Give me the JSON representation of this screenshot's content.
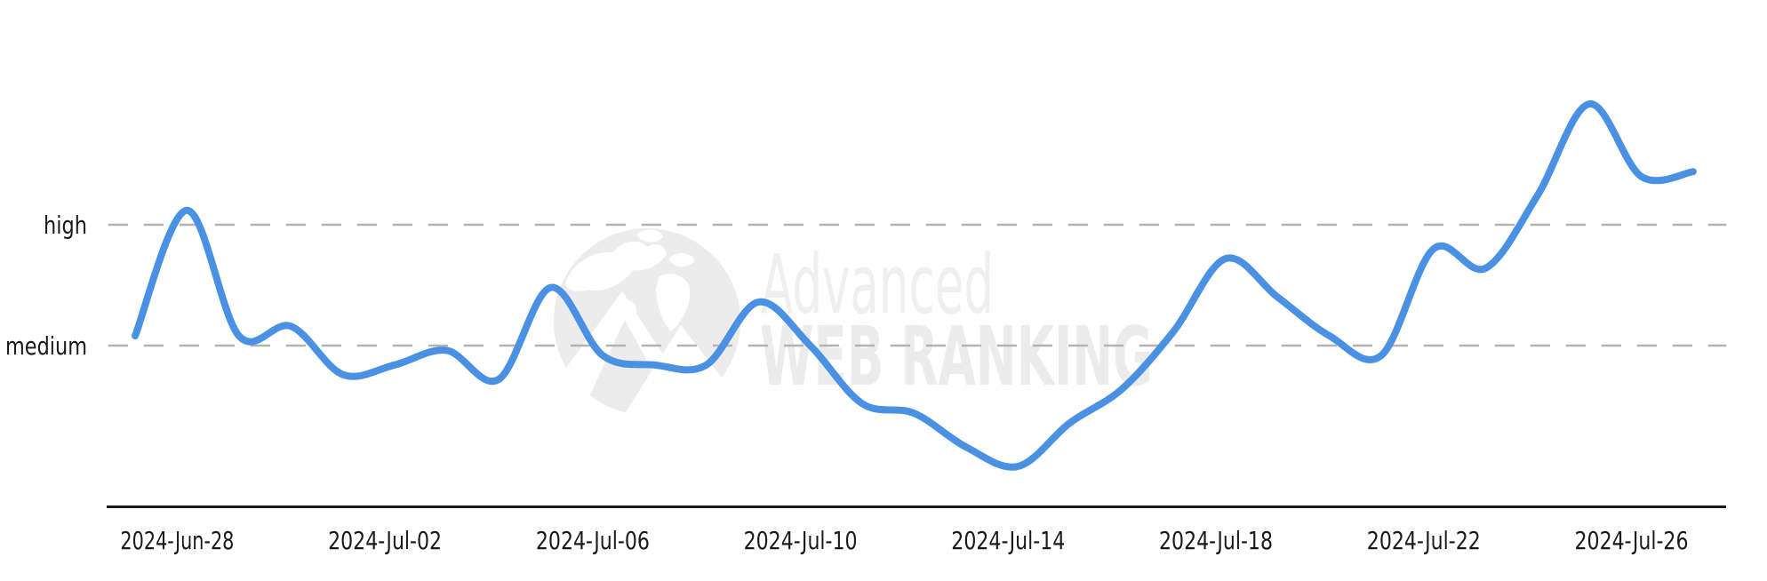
{
  "page": {
    "background": "#ffffff"
  },
  "watermark": {
    "line1": "Advanced",
    "line2": "WEB RANKING",
    "logo": "globe-mountains",
    "color_line1": "#efefef",
    "color_line2": "#ececec",
    "globe_color": "#ececec"
  },
  "chart_data": {
    "type": "line",
    "title": "",
    "legend": "none",
    "grid": "horizontal-dashed",
    "gridline_color": "#b3b3b3",
    "axis_color": "#1a1a1a",
    "x": [
      "2024-06-27",
      "2024-06-28",
      "2024-06-29",
      "2024-06-30",
      "2024-07-01",
      "2024-07-02",
      "2024-07-03",
      "2024-07-04",
      "2024-07-05",
      "2024-07-06",
      "2024-07-07",
      "2024-07-08",
      "2024-07-09",
      "2024-07-10",
      "2024-07-11",
      "2024-07-12",
      "2024-07-13",
      "2024-07-14",
      "2024-07-15",
      "2024-07-16",
      "2024-07-17",
      "2024-07-18",
      "2024-07-19",
      "2024-07-20",
      "2024-07-21",
      "2024-07-22",
      "2024-07-23",
      "2024-07-24",
      "2024-07-25",
      "2024-07-26",
      "2024-07-27"
    ],
    "series": [
      {
        "name": "trend",
        "color": "#4a91e4",
        "values": [
          52,
          78,
          52,
          54,
          44,
          46,
          49,
          43,
          62,
          48,
          46,
          46,
          59,
          50,
          38,
          36,
          29,
          25,
          34,
          41,
          53,
          68,
          60,
          52,
          48,
          70,
          66,
          81,
          100,
          85,
          86
        ]
      }
    ],
    "x_tick_labels": [
      {
        "label": "2024-Jun-28",
        "x_index": 1
      },
      {
        "label": "2024-Jul-02",
        "x_index": 5
      },
      {
        "label": "2024-Jul-06",
        "x_index": 9
      },
      {
        "label": "2024-Jul-10",
        "x_index": 13
      },
      {
        "label": "2024-Jul-14",
        "x_index": 17
      },
      {
        "label": "2024-Jul-18",
        "x_index": 21
      },
      {
        "label": "2024-Jul-22",
        "x_index": 25
      },
      {
        "label": "2024-Jul-26",
        "x_index": 29
      }
    ],
    "y_axis": {
      "labels": [
        {
          "text": "high",
          "value": 75
        },
        {
          "text": "medium",
          "value": 50
        }
      ]
    },
    "value_scale_note": "relative scale where medium=50 and high=75"
  }
}
